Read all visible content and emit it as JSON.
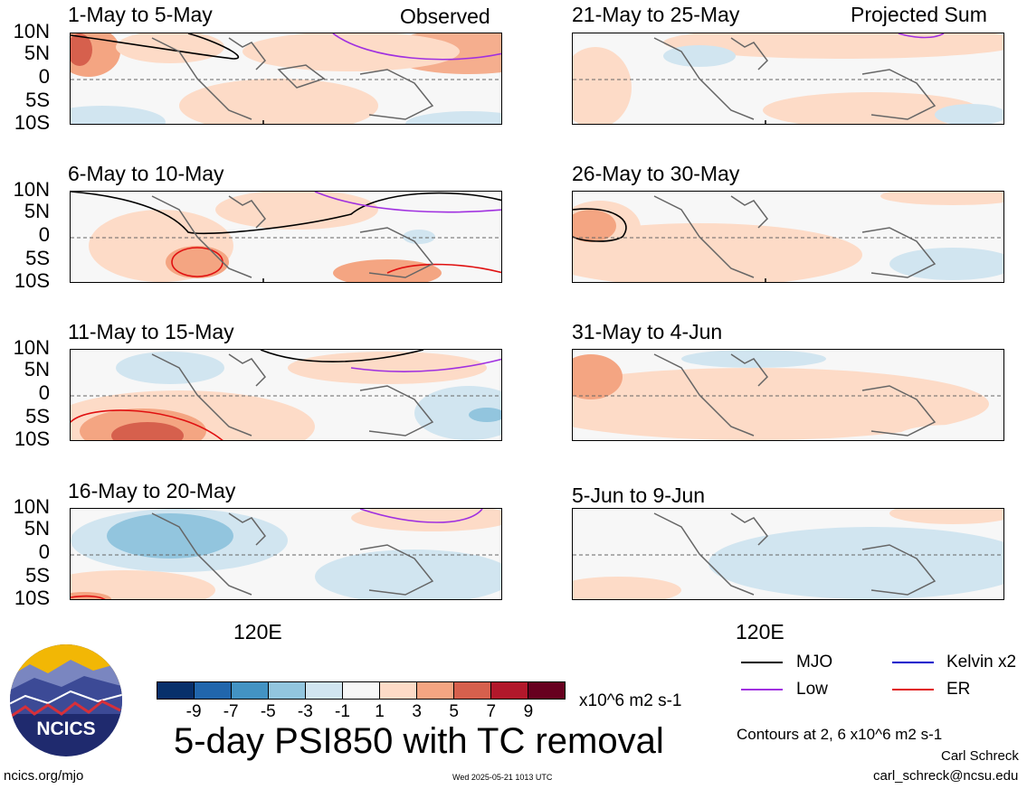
{
  "corner_labels": {
    "observed": "Observed",
    "projected": "Projected Sum"
  },
  "latitudes": [
    "10N",
    "5N",
    "0",
    "5S",
    "10S"
  ],
  "longitude_label": "120E",
  "panels": {
    "left": [
      "1-May to 5-May",
      "6-May to 10-May",
      "11-May to 15-May",
      "16-May to 20-May"
    ],
    "right": [
      "21-May to 25-May",
      "26-May to 30-May",
      "31-May to 4-Jun",
      "5-Jun to 9-Jun"
    ]
  },
  "colorbar": {
    "ticks": [
      "-9",
      "-7",
      "-5",
      "-3",
      "-1",
      "1",
      "3",
      "5",
      "7",
      "9"
    ],
    "units": "x10^6 m2 s-1",
    "colors": [
      "#08306b",
      "#2166ac",
      "#4393c3",
      "#92c5de",
      "#d1e5f0",
      "#f7f7f7",
      "#fddbc7",
      "#f4a582",
      "#d6604d",
      "#b2182b",
      "#67001f"
    ]
  },
  "legend": {
    "items": [
      {
        "label": "MJO",
        "color": "#000000"
      },
      {
        "label": "Kelvin x2",
        "color": "#0000cc"
      },
      {
        "label": "Low",
        "color": "#a030e0"
      },
      {
        "label": "ER",
        "color": "#e01010"
      }
    ],
    "contours_note": "Contours at 2, 6 x10^6 m2 s-1"
  },
  "main_title": "5-day PSI850 with TC removal",
  "logo_text": "NCICS",
  "footer": {
    "url": "ncics.org/mjo",
    "timestamp": "Wed 2025-05-21 1013 UTC",
    "author": "Carl Schreck",
    "email": "carl_schreck@ncsu.edu"
  }
}
